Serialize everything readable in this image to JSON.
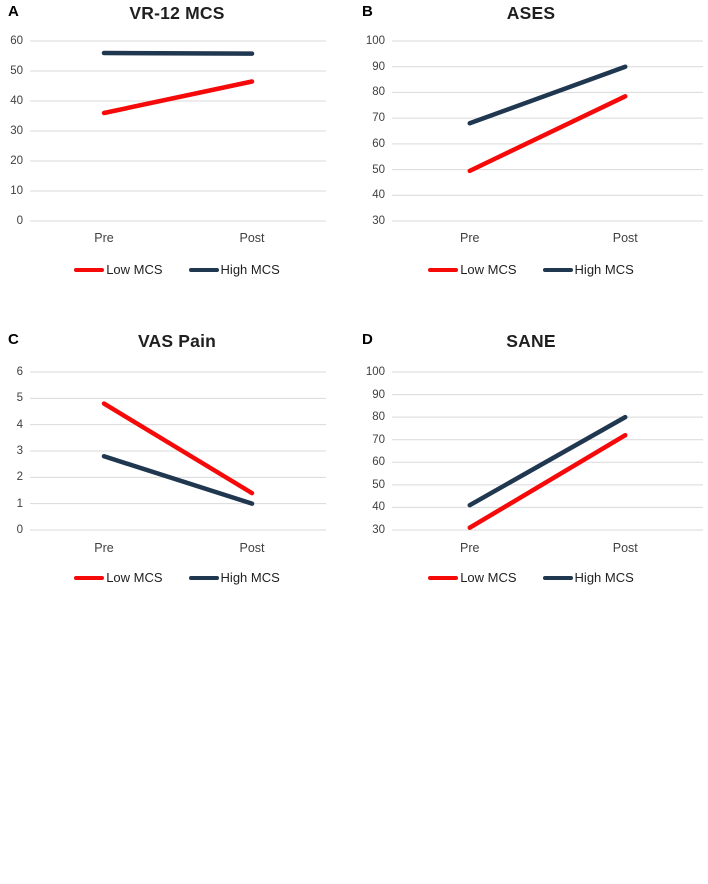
{
  "figure": {
    "background": "#FFFFFF",
    "grid_color": "#D9D9D9",
    "tick_label_color": "#404040",
    "title_color": "#1F1F1F",
    "accent_red": "#F50909",
    "accent_navy": "#203750",
    "categories": [
      "Pre",
      "Post"
    ]
  },
  "chart_data": [
    {
      "type": "line",
      "panel": "A",
      "title": "VR-12 MCS",
      "x": [
        "Pre",
        "Post"
      ],
      "series": [
        {
          "name": "Low MCS",
          "color": "#F50909",
          "values": [
            36,
            46.5
          ]
        },
        {
          "name": "High MCS",
          "color": "#203750",
          "values": [
            56,
            55.8
          ]
        }
      ],
      "ylim": [
        0,
        60
      ],
      "ytick_step": 10,
      "grid": true,
      "legend_position": "bottom"
    },
    {
      "type": "line",
      "panel": "B",
      "title": "ASES",
      "x": [
        "Pre",
        "Post"
      ],
      "series": [
        {
          "name": "Low MCS",
          "color": "#F50909",
          "values": [
            49.5,
            78.5
          ]
        },
        {
          "name": "High MCS",
          "color": "#203750",
          "values": [
            68,
            90
          ]
        }
      ],
      "ylim": [
        30,
        100
      ],
      "ytick_step": 10,
      "grid": true,
      "legend_position": "bottom"
    },
    {
      "type": "line",
      "panel": "C",
      "title": "VAS Pain",
      "x": [
        "Pre",
        "Post"
      ],
      "series": [
        {
          "name": "Low MCS",
          "color": "#F50909",
          "values": [
            4.8,
            1.4
          ]
        },
        {
          "name": "High MCS",
          "color": "#203750",
          "values": [
            2.8,
            1.0
          ]
        }
      ],
      "ylim": [
        0,
        6
      ],
      "ytick_step": 1,
      "grid": true,
      "legend_position": "bottom"
    },
    {
      "type": "line",
      "panel": "D",
      "title": "SANE",
      "x": [
        "Pre",
        "Post"
      ],
      "series": [
        {
          "name": "Low MCS",
          "color": "#F50909",
          "values": [
            31,
            72
          ]
        },
        {
          "name": "High MCS",
          "color": "#203750",
          "values": [
            41,
            80
          ]
        }
      ],
      "ylim": [
        30,
        100
      ],
      "ytick_step": 10,
      "grid": true,
      "legend_position": "bottom"
    }
  ]
}
